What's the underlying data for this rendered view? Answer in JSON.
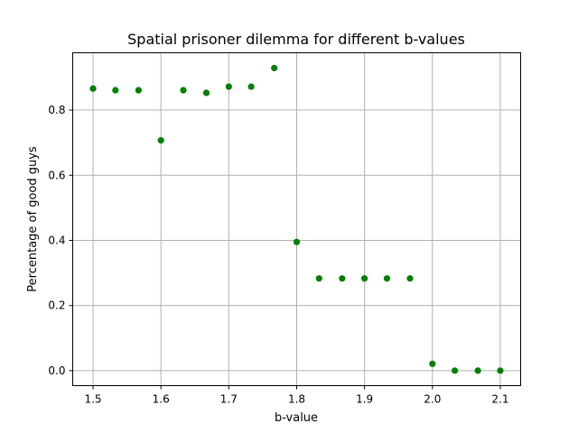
{
  "chart_data": {
    "type": "scatter",
    "title": "Spatial prisoner dilemma for different b-values",
    "xlabel": "b-value",
    "ylabel": "Percentage of good guys",
    "xlim": [
      1.47,
      2.13
    ],
    "ylim": [
      -0.046,
      0.976
    ],
    "xticks": [
      1.5,
      1.6,
      1.7,
      1.8,
      1.9,
      2.0,
      2.1
    ],
    "xtick_labels": [
      "1.5",
      "1.6",
      "1.7",
      "1.8",
      "1.9",
      "2.0",
      "2.1"
    ],
    "yticks": [
      0.0,
      0.2,
      0.4,
      0.6,
      0.8
    ],
    "ytick_labels": [
      "0.0",
      "0.2",
      "0.4",
      "0.6",
      "0.8"
    ],
    "grid": true,
    "color": "#008000",
    "points": [
      {
        "x": 1.5,
        "y": 0.866
      },
      {
        "x": 1.533,
        "y": 0.861
      },
      {
        "x": 1.567,
        "y": 0.861
      },
      {
        "x": 1.6,
        "y": 0.707
      },
      {
        "x": 1.633,
        "y": 0.861
      },
      {
        "x": 1.667,
        "y": 0.853
      },
      {
        "x": 1.7,
        "y": 0.872
      },
      {
        "x": 1.733,
        "y": 0.872
      },
      {
        "x": 1.767,
        "y": 0.929
      },
      {
        "x": 1.8,
        "y": 0.395
      },
      {
        "x": 1.833,
        "y": 0.283
      },
      {
        "x": 1.867,
        "y": 0.283
      },
      {
        "x": 1.9,
        "y": 0.283
      },
      {
        "x": 1.933,
        "y": 0.283
      },
      {
        "x": 1.967,
        "y": 0.283
      },
      {
        "x": 2.0,
        "y": 0.021
      },
      {
        "x": 2.033,
        "y": 0.0
      },
      {
        "x": 2.067,
        "y": 0.0
      },
      {
        "x": 2.1,
        "y": 0.0
      }
    ]
  }
}
